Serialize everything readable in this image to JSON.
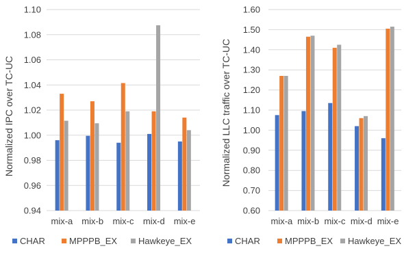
{
  "chart_data": [
    {
      "type": "bar",
      "title": "",
      "xlabel": "",
      "ylabel": "Normalized IPC over TC-UC",
      "categories": [
        "mix-a",
        "mix-b",
        "mix-c",
        "mix-d",
        "mix-e"
      ],
      "ylim": [
        0.94,
        1.1
      ],
      "yticks": [
        "0.94",
        "0.96",
        "0.98",
        "1.00",
        "1.02",
        "1.04",
        "1.06",
        "1.08",
        "1.10"
      ],
      "grid": true,
      "legend": "bottom",
      "series": [
        {
          "name": "CHAR",
          "color": "#4472C4",
          "values": [
            0.996,
            0.9995,
            0.994,
            1.001,
            0.995
          ]
        },
        {
          "name": "MPPPB_EX",
          "color": "#ED7D31",
          "values": [
            1.033,
            1.027,
            1.0415,
            1.019,
            1.014
          ]
        },
        {
          "name": "Hawkeye_EX",
          "color": "#A5A5A5",
          "values": [
            1.0115,
            1.0095,
            1.019,
            1.0875,
            1.004
          ]
        }
      ]
    },
    {
      "type": "bar",
      "title": "",
      "xlabel": "",
      "ylabel": "Normalized LLC traffic over TC-UC",
      "categories": [
        "mix-a",
        "mix-b",
        "mix-c",
        "mix-d",
        "mix-e"
      ],
      "ylim": [
        0.6,
        1.6
      ],
      "yticks": [
        "0.60",
        "0.70",
        "0.80",
        "0.90",
        "1.00",
        "1.10",
        "1.20",
        "1.30",
        "1.40",
        "1.50",
        "1.60"
      ],
      "grid": true,
      "legend": "bottom",
      "series": [
        {
          "name": "CHAR",
          "color": "#4472C4",
          "values": [
            1.075,
            1.095,
            1.135,
            1.02,
            0.96
          ]
        },
        {
          "name": "MPPPB_EX",
          "color": "#ED7D31",
          "values": [
            1.27,
            1.465,
            1.41,
            1.06,
            1.505
          ]
        },
        {
          "name": "Hawkeye_EX",
          "color": "#A5A5A5",
          "values": [
            1.27,
            1.47,
            1.425,
            1.07,
            1.515
          ]
        }
      ]
    }
  ]
}
